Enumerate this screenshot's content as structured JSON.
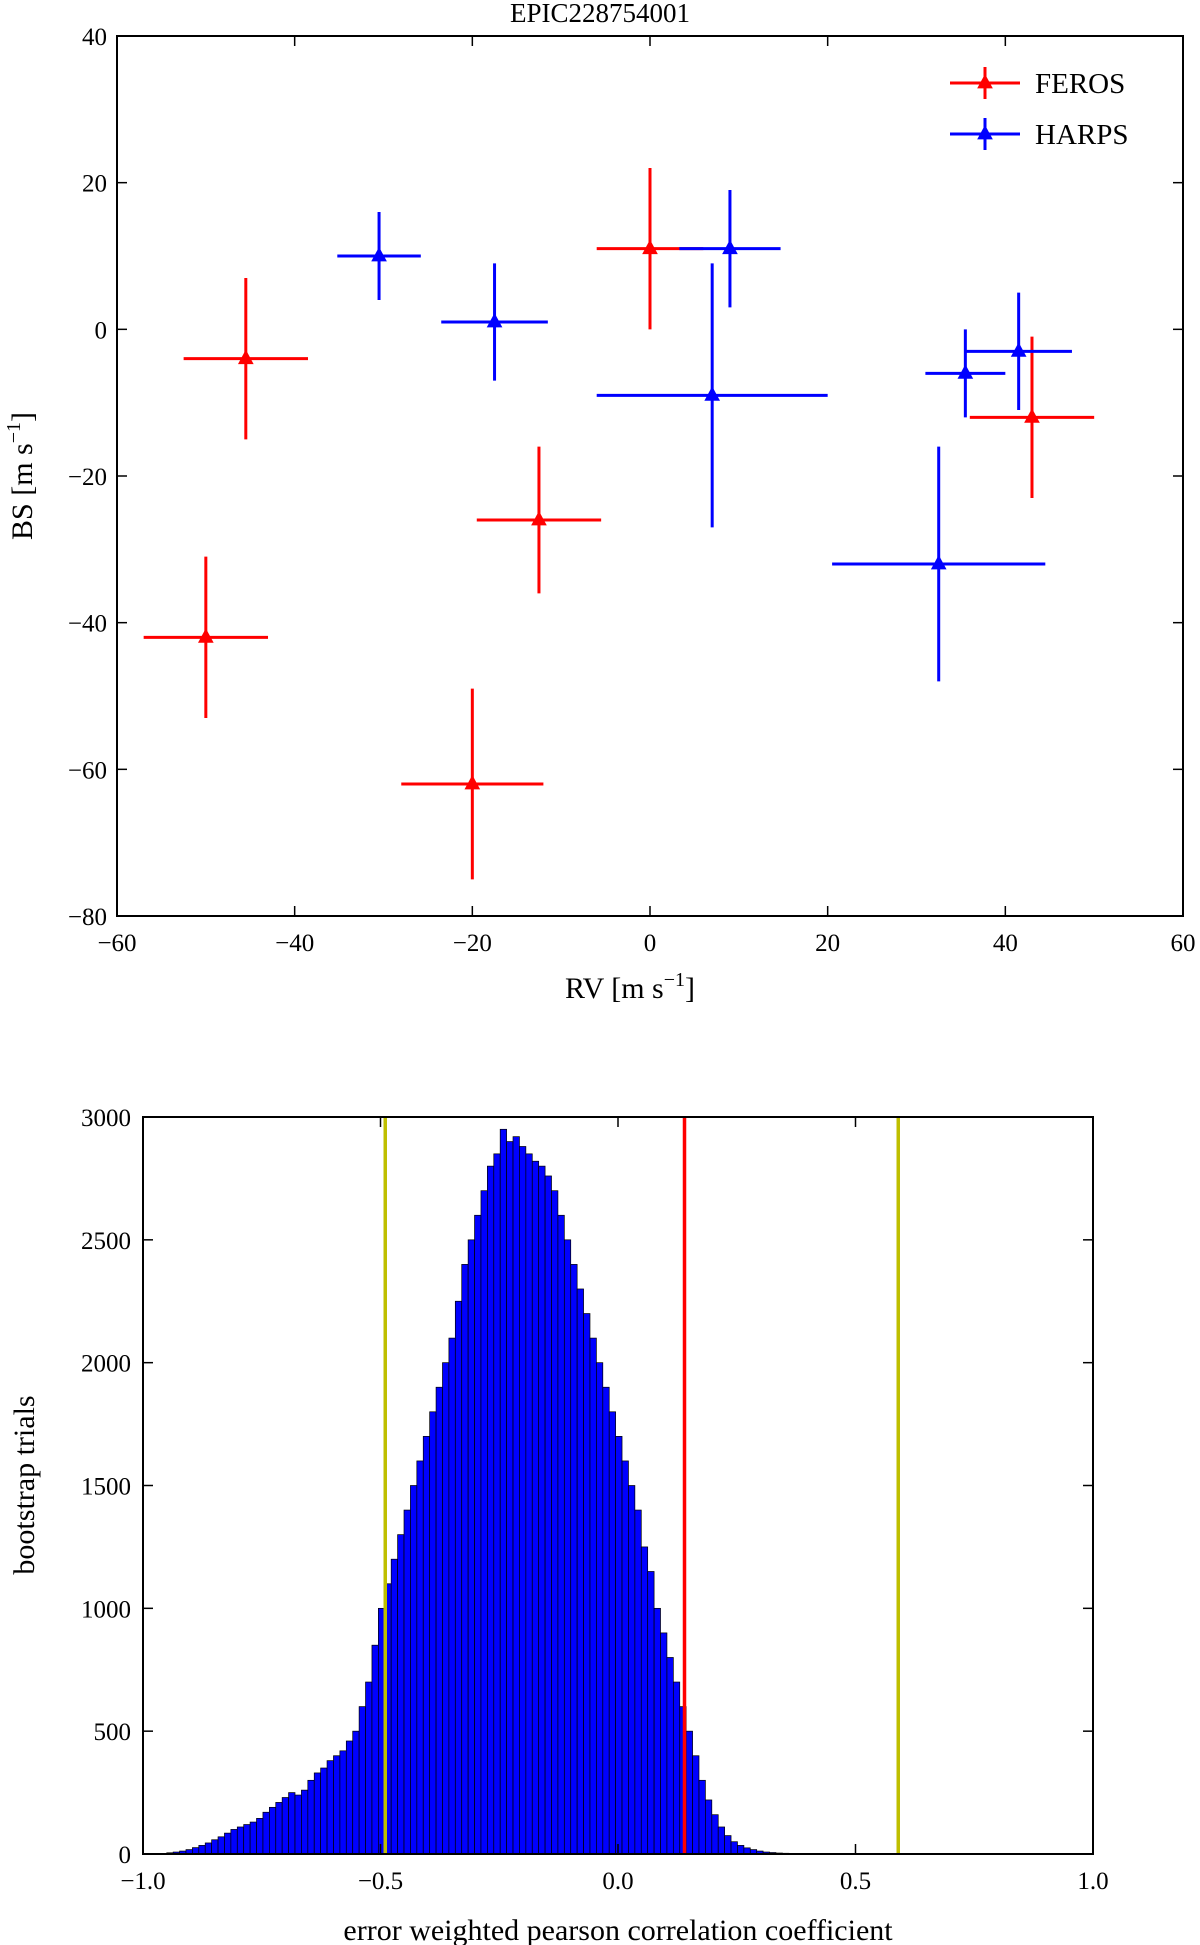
{
  "chart_data": [
    {
      "type": "scatter",
      "title": "EPIC228754001",
      "xlabel": "RV [m s",
      "ylabel": "BS [m s",
      "unit_exponent": "−1",
      "unit_close": "]",
      "xlim": [
        -60,
        60
      ],
      "ylim": [
        -80,
        40
      ],
      "xticks": [
        -60,
        -40,
        -20,
        0,
        20,
        40,
        60
      ],
      "yticks": [
        40,
        20,
        0,
        -20,
        -40,
        -60,
        -80
      ],
      "xtick_labels": [
        "−60",
        "−40",
        "−20",
        "0",
        "20",
        "40",
        "60"
      ],
      "ytick_labels": [
        "40",
        "20",
        "0",
        "−20",
        "−40",
        "−60",
        "−80"
      ],
      "legend_position": "top-right",
      "series": [
        {
          "name": "FEROS",
          "color": "#ff0000",
          "marker": "triangle",
          "points": [
            {
              "x": -45.5,
              "y": -4,
              "xerr": 7,
              "yerr": 11
            },
            {
              "x": -50,
              "y": -42,
              "xerr": 7,
              "yerr": 11
            },
            {
              "x": -12.5,
              "y": -26,
              "xerr": 7,
              "yerr": 10
            },
            {
              "x": -20,
              "y": -62,
              "xerr": 8,
              "yerr": 13
            },
            {
              "x": 0,
              "y": 11,
              "xerr": 6,
              "yerr": 11
            },
            {
              "x": 43,
              "y": -12,
              "xerr": 7,
              "yerr": 11
            }
          ]
        },
        {
          "name": "HARPS",
          "color": "#0000ff",
          "marker": "triangle",
          "points": [
            {
              "x": -30.5,
              "y": 10,
              "xerr": 4.7,
              "yerr": 6
            },
            {
              "x": -17.5,
              "y": 1,
              "xerr": 6,
              "yerr": 8
            },
            {
              "x": 7,
              "y": -9,
              "xerr": 13,
              "yerr": 18
            },
            {
              "x": 9,
              "y": 11,
              "xerr": 5.7,
              "yerr": 8
            },
            {
              "x": 35.5,
              "y": -6,
              "xerr": 4.5,
              "yerr": 6
            },
            {
              "x": 41.5,
              "y": -3,
              "xerr": 6,
              "yerr": 8
            },
            {
              "x": 32.5,
              "y": -32,
              "xerr": 12,
              "yerr": 16
            }
          ]
        }
      ]
    },
    {
      "type": "bar",
      "subtype": "histogram",
      "title": "",
      "xlabel": "error weighted pearson correlation coefficient",
      "ylabel": "bootstrap trials",
      "xlim": [
        -1.0,
        1.0
      ],
      "ylim": [
        0,
        3000
      ],
      "xticks": [
        -1.0,
        -0.5,
        0.0,
        0.5,
        1.0
      ],
      "yticks": [
        0,
        500,
        1000,
        1500,
        2000,
        2500,
        3000
      ],
      "xtick_labels": [
        "−1.0",
        "−0.5",
        "0.0",
        "0.5",
        "1.0"
      ],
      "ytick_labels": [
        "0",
        "500",
        "1000",
        "1500",
        "2000",
        "2500",
        "3000"
      ],
      "bar_color": "#0000ff",
      "bin_start": -0.95,
      "bin_width": 0.0135,
      "counts": [
        5,
        8,
        12,
        18,
        26,
        35,
        45,
        58,
        70,
        85,
        100,
        110,
        120,
        130,
        145,
        170,
        190,
        210,
        230,
        250,
        240,
        260,
        300,
        330,
        350,
        380,
        400,
        420,
        460,
        500,
        600,
        700,
        850,
        1000,
        1100,
        1200,
        1300,
        1400,
        1500,
        1600,
        1700,
        1800,
        1900,
        2000,
        2100,
        2250,
        2400,
        2500,
        2600,
        2700,
        2800,
        2850,
        2950,
        2900,
        2920,
        2880,
        2850,
        2820,
        2800,
        2760,
        2700,
        2600,
        2500,
        2400,
        2300,
        2200,
        2100,
        2000,
        1900,
        1800,
        1700,
        1600,
        1500,
        1400,
        1250,
        1150,
        1000,
        900,
        800,
        700,
        600,
        500,
        400,
        300,
        220,
        160,
        110,
        75,
        50,
        35,
        25,
        18,
        12,
        8,
        6,
        4,
        3,
        2,
        1,
        1
      ],
      "vlines": [
        {
          "x": 0.14,
          "color": "#ff0000"
        },
        {
          "x": -0.49,
          "color": "#bfbf00"
        },
        {
          "x": 0.59,
          "color": "#bfbf00"
        }
      ]
    }
  ]
}
